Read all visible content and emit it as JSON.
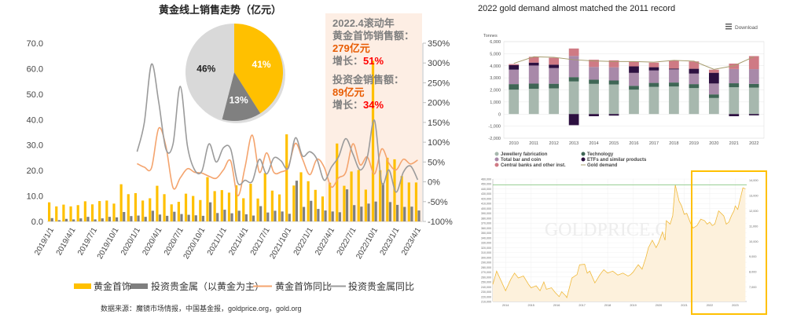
{
  "chart_data": [
    {
      "type": "bar+line",
      "title": "黄金线上销售走势（亿元）",
      "ylim": [
        0,
        70
      ],
      "y_ticks": [
        "0.0",
        "10.0",
        "20.0",
        "30.0",
        "40.0",
        "50.0",
        "60.0",
        "70.0"
      ],
      "y2lim": [
        -100,
        350
      ],
      "y2_ticks": [
        "-100%",
        "-50%",
        "0%",
        "50%",
        "100%",
        "150%",
        "200%",
        "250%",
        "300%",
        "350%"
      ],
      "x_tick_labels": [
        "2019/1/1",
        "2019/4/1",
        "2019/7/1",
        "2019/10/1",
        "2020/1/1",
        "2020/4/1",
        "2020/7/1",
        "2020/10/1",
        "2021/1/1",
        "2021/4/1",
        "2021/7/1",
        "2021/10/1",
        "2022/1/1",
        "2022/4/1",
        "2022/7/1",
        "2022/10/1",
        "2023/1/1",
        "2023/4/1"
      ],
      "series": [
        {
          "name": "黄金首饰",
          "type": "bar",
          "axis": "left",
          "color": "#FFC000",
          "values": [
            7.5,
            5.9,
            6.6,
            5.9,
            6.4,
            7.9,
            6.7,
            8.0,
            8.2,
            7.0,
            14.6,
            10.7,
            11.1,
            8.2,
            9.1,
            14.0,
            10.7,
            6.7,
            7.7,
            10.9,
            10.0,
            8.4,
            17.4,
            11.9,
            12.3,
            11.3,
            14.2,
            9.1,
            14.8,
            9.0,
            19.0,
            12.1,
            10.6,
            34.2,
            14.1,
            19.3,
            15.8,
            12.4,
            9.8,
            15.2,
            30.6,
            14.0,
            19.6,
            20.2,
            12.5,
            63.1,
            20.1,
            25.0,
            24.4,
            17.8,
            15.3,
            15.3
          ]
        },
        {
          "name": "投资贵金属（以黄金为主）",
          "type": "bar",
          "axis": "left",
          "color": "#7F7F7F",
          "values": [
            1.3,
            0.5,
            1.0,
            0.8,
            1.2,
            1.8,
            0.8,
            1.2,
            1.8,
            1.6,
            3.7,
            2.1,
            2.3,
            1.8,
            4.2,
            2.7,
            2.2,
            3.8,
            2.9,
            2.6,
            2.4,
            2.2,
            7.5,
            3.3,
            4.6,
            3.2,
            4.2,
            2.8,
            2.3,
            6.0,
            3.5,
            4.2,
            3.9,
            3.0,
            16.0,
            5.7,
            8.1,
            4.9,
            4.3,
            3.9,
            3.6,
            12.6,
            6.4,
            5.8,
            7.0,
            7.8,
            15.0,
            7.6,
            6.5,
            5.7,
            5.8,
            4.3
          ]
        },
        {
          "name": "黄金首饰同比",
          "type": "line",
          "axis": "right",
          "color": "#F4A46E",
          "start_index": 12,
          "values": [
            46,
            37,
            35,
            135,
            90,
            -15,
            10,
            33,
            24,
            22,
            14,
            9,
            30,
            53,
            -35,
            37,
            118,
            24,
            73,
            24,
            25,
            37,
            97,
            57,
            18,
            57,
            37,
            -13,
            10,
            24,
            96,
            43,
            63,
            20,
            83,
            47,
            30,
            57,
            45,
            55
          ]
        },
        {
          "name": "投资贵金属同比",
          "type": "line",
          "axis": "right",
          "color": "#9B9B9B",
          "start_index": 12,
          "values": [
            76,
            149,
            297,
            202,
            83,
            96,
            241,
            90,
            30,
            27,
            96,
            50,
            86,
            83,
            -3,
            4,
            1,
            57,
            20,
            60,
            53,
            34,
            111,
            65,
            76,
            57,
            4,
            37,
            63,
            109,
            70,
            30,
            63,
            155,
            -3,
            30,
            -26,
            24,
            40,
            5
          ]
        }
      ],
      "legend": [
        "黄金首饰",
        "投资贵金属（以黄金为主）",
        "黄金首饰同比",
        "投资贵金属同比"
      ],
      "legend_position": "bottom",
      "pie": {
        "values": [
          41,
          13,
          46
        ],
        "labels": [
          "41%",
          "13%",
          "46%"
        ],
        "colors": [
          "#FFC000",
          "#808080",
          "#D9D9D9"
        ]
      },
      "annotation": {
        "line1": "2022.4滚动年",
        "line2": "黄金首饰销售额：",
        "value1": "279亿元",
        "growth_label1": "增长：",
        "growth1": "51%",
        "line3": "投资金销售额：",
        "value2": "89亿元",
        "growth_label2": "增长：",
        "growth2": "34%",
        "highlight_color": "#FDEEE4",
        "value_color": "#E85D04",
        "growth_color": "#FF0000"
      },
      "source": "数据来源：魔镜市场情报，中国基金报，goldprice.org，gold.org"
    },
    {
      "type": "stacked-bar+line",
      "title": "2022 gold demand almost matched the 2011 record",
      "download_label": "Download",
      "ylabel": "Tonnes",
      "ylim": [
        -2000,
        6000
      ],
      "y_ticks": [
        "-2,000",
        "-1,000",
        "0",
        "1,000",
        "2,000",
        "3,000",
        "4,000",
        "5,000",
        "6,000"
      ],
      "categories": [
        "2010",
        "2011",
        "2012",
        "2013",
        "2014",
        "2015",
        "2016",
        "2017",
        "2018",
        "2019",
        "2020",
        "2021",
        "2022"
      ],
      "series": [
        {
          "name": "Jewellery fabrication",
          "color": "#A7B8AE",
          "values": [
            2020,
            2090,
            2130,
            2700,
            2500,
            2450,
            2020,
            2250,
            2280,
            2150,
            1330,
            2220,
            2190
          ]
        },
        {
          "name": "Technology",
          "color": "#3F6655",
          "values": [
            460,
            430,
            380,
            360,
            350,
            330,
            320,
            330,
            330,
            330,
            300,
            330,
            310
          ]
        },
        {
          "name": "Total bar and coin",
          "color": "#A889A9",
          "values": [
            1200,
            1500,
            1300,
            1750,
            1050,
            1090,
            1070,
            1030,
            1090,
            870,
            900,
            1180,
            1220
          ]
        },
        {
          "name": "ETFs and similar products",
          "color": "#2D1040",
          "values": [
            380,
            240,
            280,
            -920,
            -180,
            -130,
            540,
            270,
            70,
            400,
            890,
            -180,
            -110
          ]
        },
        {
          "name": "Central banks and other inst.",
          "color": "#CF7A84",
          "values": [
            80,
            480,
            570,
            620,
            600,
            580,
            390,
            380,
            660,
            610,
            255,
            450,
            1080
          ]
        }
      ],
      "line": {
        "name": "Gold demand",
        "color": "#A69C6E",
        "values": [
          4200,
          4750,
          4700,
          4500,
          4400,
          4350,
          4350,
          4300,
          4450,
          4380,
          3700,
          4000,
          4750
        ]
      },
      "legend_position": "bottom"
    },
    {
      "type": "area",
      "watermark": "GOLDPRICE.ORG",
      "xlim": [
        2013.5,
        2023.45
      ],
      "x_ticks": [
        "2014",
        "2015",
        "2016",
        "2017",
        "2018",
        "2019",
        "2020",
        "2021",
        "2022",
        "2023"
      ],
      "ylim": [
        210000,
        460000
      ],
      "y_ticks": [
        "210,000",
        "220,000",
        "230,000",
        "240,000",
        "250,000",
        "260,000",
        "270,000",
        "280,000",
        "290,000",
        "300,000",
        "310,000",
        "320,000",
        "330,000",
        "340,000",
        "350,000",
        "360,000",
        "370,000",
        "380,000",
        "390,000",
        "400,000",
        "410,000",
        "420,000",
        "430,000",
        "440,000",
        "450,000",
        "460,000"
      ],
      "y2_ticks": [
        "7,000",
        "8,000",
        "9,000",
        "10,000",
        "11,000",
        "12,000",
        "13,000",
        "14,000"
      ],
      "line_color": "#F0B93A",
      "fill_color": "#FDF1DC",
      "highlight_color": "#FFC000",
      "reference_level": 448000,
      "points": [
        [
          2013.5,
          245
        ],
        [
          2013.65,
          272
        ],
        [
          2013.8,
          255
        ],
        [
          2014.0,
          232
        ],
        [
          2014.2,
          255
        ],
        [
          2014.35,
          268
        ],
        [
          2014.5,
          258
        ],
        [
          2014.7,
          262
        ],
        [
          2014.9,
          245
        ],
        [
          2015.0,
          238
        ],
        [
          2015.2,
          242
        ],
        [
          2015.35,
          232
        ],
        [
          2015.5,
          250
        ],
        [
          2015.6,
          235
        ],
        [
          2015.8,
          238
        ],
        [
          2015.95,
          228
        ],
        [
          2016.1,
          220
        ],
        [
          2016.2,
          230
        ],
        [
          2016.35,
          222
        ],
        [
          2016.4,
          218
        ],
        [
          2016.6,
          258
        ],
        [
          2016.8,
          265
        ],
        [
          2016.9,
          285
        ],
        [
          2017.1,
          286
        ],
        [
          2017.2,
          268
        ],
        [
          2017.3,
          272
        ],
        [
          2017.5,
          248
        ],
        [
          2017.7,
          265
        ],
        [
          2017.85,
          275
        ],
        [
          2018.0,
          268
        ],
        [
          2018.2,
          272
        ],
        [
          2018.4,
          264
        ],
        [
          2018.6,
          268
        ],
        [
          2018.8,
          262
        ],
        [
          2018.9,
          265
        ],
        [
          2019.0,
          270
        ],
        [
          2019.1,
          278
        ],
        [
          2019.2,
          285
        ],
        [
          2019.35,
          276
        ],
        [
          2019.5,
          300
        ],
        [
          2019.6,
          320
        ],
        [
          2019.75,
          335
        ],
        [
          2019.9,
          320
        ],
        [
          2020.0,
          330
        ],
        [
          2020.15,
          352
        ],
        [
          2020.25,
          335
        ],
        [
          2020.3,
          375
        ],
        [
          2020.45,
          368
        ],
        [
          2020.55,
          385
        ],
        [
          2020.65,
          448
        ],
        [
          2020.8,
          415
        ],
        [
          2020.9,
          405
        ],
        [
          2021.0,
          388
        ],
        [
          2021.1,
          390
        ],
        [
          2021.25,
          370
        ],
        [
          2021.35,
          360
        ],
        [
          2021.5,
          365
        ],
        [
          2021.65,
          378
        ],
        [
          2021.8,
          375
        ],
        [
          2021.9,
          368
        ],
        [
          2022.0,
          372
        ],
        [
          2022.1,
          365
        ],
        [
          2022.2,
          368
        ],
        [
          2022.35,
          395
        ],
        [
          2022.45,
          390
        ],
        [
          2022.55,
          385
        ],
        [
          2022.65,
          368
        ],
        [
          2022.75,
          372
        ],
        [
          2022.85,
          385
        ],
        [
          2022.95,
          395
        ],
        [
          2023.0,
          405
        ],
        [
          2023.1,
          398
        ],
        [
          2023.2,
          420
        ],
        [
          2023.3,
          442
        ],
        [
          2023.4,
          440
        ]
      ]
    }
  ]
}
